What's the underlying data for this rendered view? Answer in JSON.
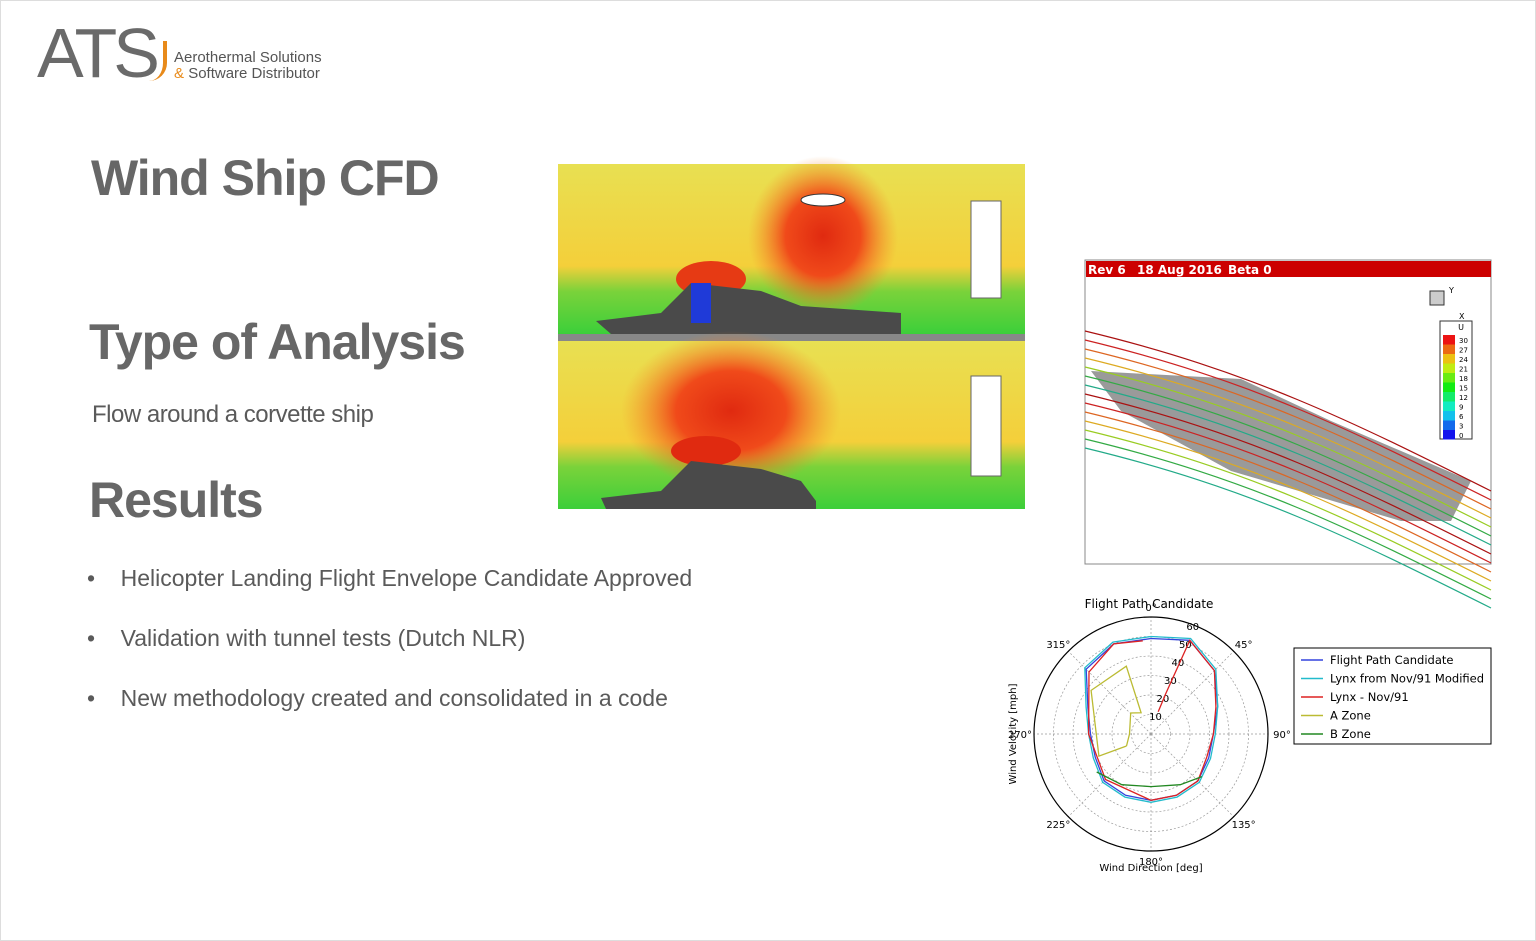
{
  "header": {
    "logo": "ATS",
    "company_line1": "Aerothermal Solutions",
    "company_amp": "&",
    "company_line2": "Software Distributor"
  },
  "title": "Wind Ship CFD",
  "analysis": {
    "heading": "Type of Analysis",
    "text": "Flow around a corvette ship"
  },
  "results": {
    "heading": "Results",
    "bullets": [
      "Helicopter Landing Flight Envelope Candidate Approved",
      "Validation with tunnel tests (Dutch NLR)",
      "New methodology created and consolidated in a code"
    ]
  },
  "render_3d": {
    "labels": [
      "Rev 6",
      "18 Aug 2016",
      "Beta 0"
    ],
    "axes": [
      "Y",
      "X"
    ],
    "legend_title": "U",
    "legend_ticks": [
      30,
      27,
      24,
      21,
      18,
      15,
      12,
      9,
      6,
      3,
      0
    ]
  },
  "polar_chart": {
    "type": "polar",
    "title": "Flight Path Candidate",
    "xlabel": "Wind Direction [deg]",
    "ylabel": "Wind Velocity [mph]",
    "rlim": [
      0,
      60
    ],
    "rticks": [
      10,
      20,
      30,
      40,
      50,
      60
    ],
    "thetaticks": [
      {
        "value": 0,
        "label": "0°"
      },
      {
        "value": 45,
        "label": "45°"
      },
      {
        "value": 90,
        "label": "90°"
      },
      {
        "value": 135,
        "label": "135°"
      },
      {
        "value": 180,
        "label": "180°"
      },
      {
        "value": 225,
        "label": "225°"
      },
      {
        "value": 270,
        "label": "270°"
      },
      {
        "value": 315,
        "label": "315°"
      }
    ],
    "series": [
      {
        "name": "Flight Path Candidate",
        "color": "#3344dd",
        "theta": [
          0,
          22.5,
          45,
          67.5,
          90,
          112.5,
          135,
          157.5,
          180,
          202.5,
          225,
          247.5,
          270,
          292.5,
          315,
          337.5,
          360
        ],
        "r": [
          49,
          52,
          46,
          37,
          32,
          32,
          34,
          34,
          34,
          34,
          34,
          31,
          31,
          35,
          47,
          50,
          49
        ]
      },
      {
        "name": "Lynx from Nov/91 Modified",
        "color": "#22bbcc",
        "theta": [
          0,
          22.5,
          45,
          67.5,
          90,
          112.5,
          135,
          157.5,
          180,
          202.5,
          225,
          247.5,
          270,
          292.5,
          315,
          337.5,
          360
        ],
        "r": [
          50,
          53,
          47,
          37,
          33,
          33,
          35,
          35,
          35,
          35,
          35,
          32,
          32,
          36,
          48,
          51,
          50
        ]
      },
      {
        "name": "Lynx - Nov/91",
        "color": "#dd2222",
        "theta": [
          18,
          20,
          22.5,
          45,
          67.5,
          90,
          112.5,
          135,
          157.5,
          180,
          225,
          270,
          315,
          337.5,
          355
        ],
        "r": [
          12,
          22,
          52,
          46,
          36,
          32,
          31,
          34,
          34,
          34,
          33,
          32,
          45,
          50,
          48
        ]
      },
      {
        "name": "A Zone",
        "color": "#bbbb33",
        "theta": [
          244,
          247,
          306,
          340,
          335,
          316,
          270,
          244
        ],
        "r": [
          14,
          29,
          38,
          37,
          12,
          15,
          11,
          14
        ]
      },
      {
        "name": "B Zone",
        "color": "#228822",
        "theta": [
          235,
          210,
          180,
          150,
          130
        ],
        "r": [
          34,
          30,
          27,
          30,
          34
        ]
      }
    ]
  }
}
